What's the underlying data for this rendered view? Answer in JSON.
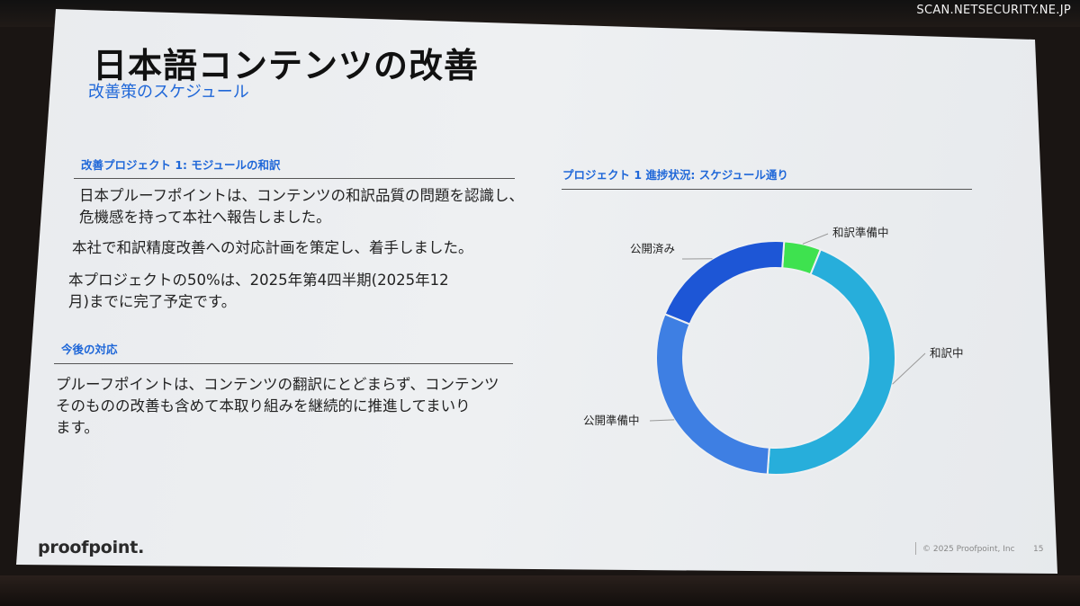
{
  "watermark": "SCAN.NETSECURITY.NE.JP",
  "slide": {
    "title": "日本語コンテンツの改善",
    "subtitle": "改善策のスケジュール",
    "section1": {
      "heading": "改善プロジェクト 1: モジュールの和訳",
      "paragraphs": [
        [
          "日本プルーフポイントは、コンテンツの和訳品質の問題を認識し、",
          "危機感を持って本社へ報告しました。"
        ],
        [
          "本社で和訳精度改善への対応計画を策定し、着手しました。"
        ],
        [
          "本プロジェクトの50%は、2025年第4四半期(2025年12",
          "月)までに完了予定です。"
        ]
      ]
    },
    "section2": {
      "heading": "今後の対応",
      "paragraphs": [
        [
          "プルーフポイントは、コンテンツの翻訳にとどまらず、コンテンツ",
          "そのものの改善も含めて本取り組みを継続的に推進してまいり",
          "ます。"
        ]
      ]
    },
    "chart_heading": "プロジェクト 1 進捗状況: スケジュール通り",
    "logo": "proofpoint.",
    "copyright": "© 2025 Proofpoint, Inc",
    "page_number": "15"
  },
  "chart_data": {
    "type": "pie",
    "donut": true,
    "title": "プロジェクト 1 進捗状況: スケジュール通り",
    "labels": [
      "和訳準備中",
      "和訳中",
      "公開準備中",
      "公開済み"
    ],
    "values": [
      5,
      45,
      30,
      20
    ],
    "colors": [
      "#3ee24f",
      "#27aedb",
      "#3e7fe3",
      "#1d56d6"
    ]
  }
}
